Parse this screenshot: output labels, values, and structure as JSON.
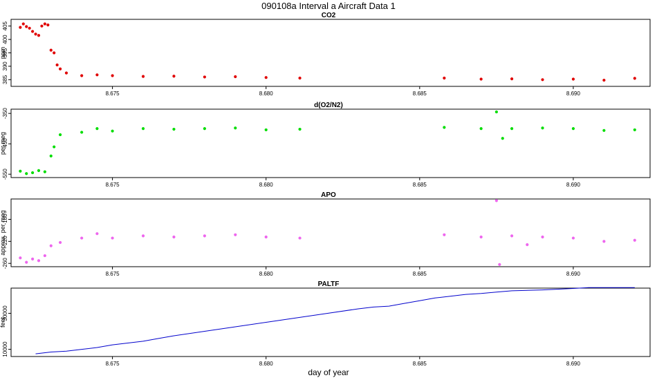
{
  "figure": {
    "title": "090108a   Interval a Aircraft Data 1",
    "xlabel": "day of year",
    "x_ticks": [
      "8.675",
      "8.680",
      "8.685",
      "8.690"
    ]
  },
  "chart_data": [
    {
      "type": "scatter",
      "title": "CO2",
      "ylabel": "ppm",
      "xlim": [
        8.6717,
        8.6925
      ],
      "ylim": [
        382.5,
        407.5
      ],
      "yticks": [
        385,
        390,
        395,
        400,
        405
      ],
      "color": "#e00000",
      "points": [
        [
          8.672,
          404.5
        ],
        [
          8.6721,
          405.8
        ],
        [
          8.6722,
          404.8
        ],
        [
          8.6723,
          404.2
        ],
        [
          8.6724,
          403.0
        ],
        [
          8.6725,
          402.0
        ],
        [
          8.6726,
          401.5
        ],
        [
          8.6727,
          405.0
        ],
        [
          8.6728,
          405.8
        ],
        [
          8.6729,
          405.4
        ],
        [
          8.673,
          396.0
        ],
        [
          8.6731,
          395.0
        ],
        [
          8.6732,
          390.5
        ],
        [
          8.6733,
          389.0
        ],
        [
          8.6735,
          387.5
        ],
        [
          8.674,
          386.5
        ],
        [
          8.6745,
          386.8
        ],
        [
          8.675,
          386.5
        ],
        [
          8.676,
          386.2
        ],
        [
          8.677,
          386.3
        ],
        [
          8.678,
          386.0
        ],
        [
          8.679,
          386.1
        ],
        [
          8.68,
          385.8
        ],
        [
          8.6811,
          385.6
        ],
        [
          8.6858,
          385.6
        ],
        [
          8.687,
          385.2
        ],
        [
          8.688,
          385.3
        ],
        [
          8.689,
          385.0
        ],
        [
          8.69,
          385.2
        ],
        [
          8.691,
          384.8
        ],
        [
          8.692,
          385.5
        ]
      ]
    },
    {
      "type": "scatter",
      "title": "d(O2/N2)",
      "ylabel": "per meg",
      "xlim": [
        8.6717,
        8.6925
      ],
      "ylim": [
        -561,
        -336
      ],
      "yticks": [
        -350,
        -450,
        -550
      ],
      "ytick_labels": [
        "-350",
        "-450",
        "-550"
      ],
      "color": "#00dd00",
      "points": [
        [
          8.672,
          -540
        ],
        [
          8.6722,
          -548
        ],
        [
          8.6724,
          -545
        ],
        [
          8.6726,
          -538
        ],
        [
          8.6728,
          -542
        ],
        [
          8.673,
          -490
        ],
        [
          8.6731,
          -460
        ],
        [
          8.6733,
          -420
        ],
        [
          8.674,
          -412
        ],
        [
          8.6745,
          -400
        ],
        [
          8.675,
          -408
        ],
        [
          8.676,
          -400
        ],
        [
          8.677,
          -402
        ],
        [
          8.678,
          -400
        ],
        [
          8.679,
          -398
        ],
        [
          8.68,
          -404
        ],
        [
          8.6811,
          -402
        ],
        [
          8.6858,
          -396
        ],
        [
          8.687,
          -400
        ],
        [
          8.6875,
          -345
        ],
        [
          8.6877,
          -432
        ],
        [
          8.688,
          -400
        ],
        [
          8.689,
          -398
        ],
        [
          8.69,
          -400
        ],
        [
          8.691,
          -406
        ],
        [
          8.692,
          -404
        ]
      ]
    },
    {
      "type": "scatter",
      "title": "APO",
      "ylabel": "approx. per meg",
      "xlim": [
        8.6717,
        8.6925
      ],
      "ylim": [
        -266,
        -143
      ],
      "yticks": [
        -180,
        -220,
        -260
      ],
      "ytick_labels": [
        "-180",
        "-220",
        "-260"
      ],
      "color": "#ee66ee",
      "points": [
        [
          8.672,
          -250
        ],
        [
          8.6722,
          -258
        ],
        [
          8.6724,
          -252
        ],
        [
          8.6726,
          -255
        ],
        [
          8.6728,
          -246
        ],
        [
          8.673,
          -228
        ],
        [
          8.6733,
          -222
        ],
        [
          8.674,
          -214
        ],
        [
          8.6745,
          -206
        ],
        [
          8.675,
          -214
        ],
        [
          8.676,
          -210
        ],
        [
          8.677,
          -212
        ],
        [
          8.678,
          -210
        ],
        [
          8.679,
          -208
        ],
        [
          8.68,
          -212
        ],
        [
          8.6811,
          -214
        ],
        [
          8.6858,
          -208
        ],
        [
          8.687,
          -212
        ],
        [
          8.6875,
          -146
        ],
        [
          8.6876,
          -262
        ],
        [
          8.688,
          -210
        ],
        [
          8.6885,
          -226
        ],
        [
          8.689,
          -212
        ],
        [
          8.69,
          -214
        ],
        [
          8.691,
          -220
        ],
        [
          8.692,
          -218
        ]
      ]
    },
    {
      "type": "line",
      "title": "PALTF",
      "ylabel": "feet",
      "xlim": [
        8.6717,
        8.6925
      ],
      "ylim": [
        6000,
        44000
      ],
      "yticks": [
        10000,
        30000
      ],
      "color": "#0000cc",
      "x": [
        8.6725,
        8.673,
        8.6735,
        8.674,
        8.6745,
        8.675,
        8.6755,
        8.676,
        8.6765,
        8.677,
        8.678,
        8.679,
        8.68,
        8.681,
        8.682,
        8.683,
        8.6835,
        8.684,
        8.6845,
        8.685,
        8.6855,
        8.686,
        8.6865,
        8.687,
        8.6875,
        8.688,
        8.689,
        8.69,
        8.6905,
        8.691,
        8.6915,
        8.692
      ],
      "y": [
        7500,
        8500,
        9000,
        10000,
        11000,
        12500,
        13500,
        14500,
        16000,
        17500,
        20000,
        22500,
        25000,
        27500,
        30000,
        32500,
        33500,
        34000,
        35500,
        37000,
        38500,
        39500,
        40500,
        41000,
        41800,
        42500,
        43000,
        43800,
        44300,
        44300,
        44300,
        44300
      ]
    }
  ]
}
